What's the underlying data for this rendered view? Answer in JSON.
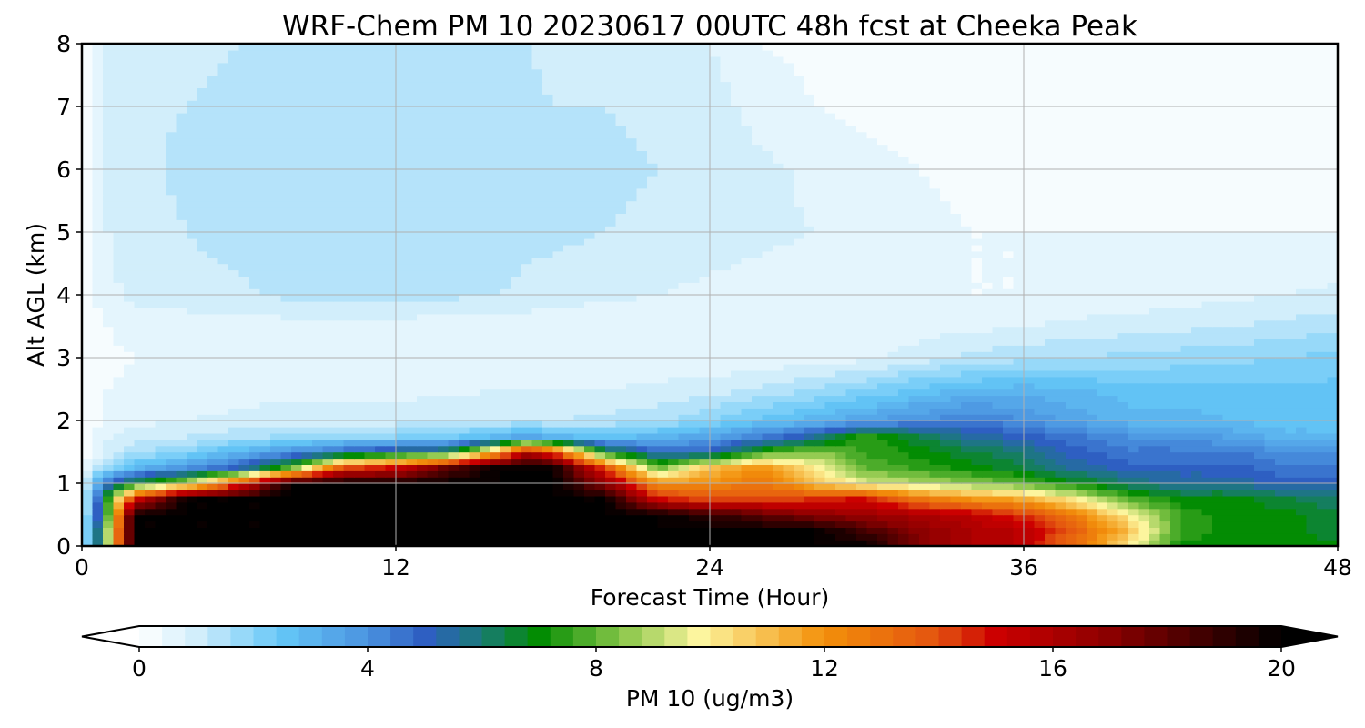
{
  "chart_data": {
    "type": "heatmap",
    "title": "WRF-Chem PM 10  20230617 00UTC 48h fcst at Cheeka Peak",
    "xlabel": "Forecast Time (Hour)",
    "ylabel": "Alt AGL (km)",
    "xlim": [
      0,
      48
    ],
    "ylim": [
      0,
      8
    ],
    "x_ticks": [
      0,
      12,
      24,
      36,
      48
    ],
    "y_ticks": [
      0,
      1,
      2,
      3,
      4,
      5,
      6,
      7,
      8
    ],
    "grid": true,
    "colorbar": {
      "label": "PM 10  (ug/m3)",
      "orientation": "horizontal",
      "placement": "bottom",
      "range": [
        0,
        20
      ],
      "ticks": [
        0,
        4,
        8,
        12,
        16,
        20
      ],
      "extend": "both",
      "stops": [
        {
          "v": 0,
          "c": "#ffffff"
        },
        {
          "v": 1,
          "c": "#d2eefb"
        },
        {
          "v": 2.5,
          "c": "#64c6f7"
        },
        {
          "v": 4,
          "c": "#4b93e0"
        },
        {
          "v": 5,
          "c": "#2e5fc2"
        },
        {
          "v": 6,
          "c": "#1a7b76"
        },
        {
          "v": 7,
          "c": "#038c03"
        },
        {
          "v": 8.5,
          "c": "#8cc84c"
        },
        {
          "v": 9.8,
          "c": "#fcf59e"
        },
        {
          "v": 12,
          "c": "#f3900a"
        },
        {
          "v": 14,
          "c": "#e35310"
        },
        {
          "v": 15,
          "c": "#cc0000"
        },
        {
          "v": 17,
          "c": "#8b0000"
        },
        {
          "v": 20,
          "c": "#000000"
        }
      ]
    },
    "grid_values": {
      "x": [
        0,
        1,
        2,
        4,
        6,
        8,
        10,
        12,
        14,
        16,
        17,
        18,
        20,
        22,
        24,
        26,
        28,
        30,
        32,
        34,
        36,
        38,
        40,
        42,
        44,
        46,
        48
      ],
      "y": [
        0,
        0.25,
        0.5,
        0.75,
        1,
        1.25,
        1.5,
        1.75,
        2,
        2.5,
        3,
        3.5,
        4,
        5,
        6,
        7,
        8
      ],
      "z": [
        [
          0.5,
          9,
          20,
          20,
          20,
          20,
          20,
          20,
          20,
          20,
          20,
          20,
          20,
          20,
          20,
          20,
          20,
          20,
          17,
          16,
          15.5,
          13,
          10,
          7,
          7,
          7,
          7
        ],
        [
          0.5,
          9,
          20,
          20,
          20,
          20,
          20,
          20,
          20,
          20,
          20,
          20,
          20,
          20,
          20,
          20,
          20,
          18.5,
          17,
          16,
          15.5,
          13.5,
          11,
          7.5,
          7,
          7,
          6.5
        ],
        [
          0.5,
          8,
          20,
          20,
          20,
          20,
          20,
          20,
          20,
          20,
          20,
          20,
          20,
          20,
          19,
          18,
          17,
          16.5,
          16,
          15.5,
          14.5,
          12.5,
          10,
          7.5,
          7,
          7,
          6.5
        ],
        [
          0.5,
          7.5,
          15,
          20,
          20,
          20,
          20,
          20,
          20,
          20,
          20,
          20,
          20,
          15,
          14,
          14,
          14.5,
          15,
          13,
          12,
          11.5,
          10,
          8,
          7,
          7,
          6.5,
          6
        ],
        [
          0.5,
          5,
          7,
          9,
          14,
          20,
          20,
          20,
          20,
          20,
          20,
          20,
          17,
          12,
          12,
          13,
          11,
          9.5,
          9,
          8.5,
          8,
          7,
          6,
          5.5,
          5.5,
          5,
          5
        ],
        [
          0.2,
          2,
          3,
          4,
          5,
          8,
          14,
          15,
          18,
          20,
          20,
          20,
          14,
          8,
          11,
          12,
          10,
          8,
          7.5,
          7,
          6.5,
          5.5,
          5,
          5,
          5,
          4.5,
          4.5
        ],
        [
          0.2,
          1,
          1.5,
          2,
          3,
          4,
          5,
          6,
          6.5,
          12,
          16,
          14,
          7,
          5,
          5,
          7.5,
          8.5,
          7.5,
          7,
          6.5,
          6,
          5,
          4.5,
          4.5,
          4.5,
          4,
          4
        ],
        [
          0.1,
          0.8,
          1,
          1.2,
          1.5,
          1.7,
          2,
          2,
          2.3,
          3,
          3.5,
          3,
          2.5,
          3,
          3.5,
          4.5,
          5.5,
          7.5,
          6.5,
          5.5,
          5,
          4.5,
          4,
          4,
          3.5,
          3,
          3
        ],
        [
          0.1,
          0.5,
          0.7,
          0.8,
          0.9,
          1,
          1,
          1,
          1.1,
          1.2,
          1.2,
          1.2,
          1.3,
          1.5,
          2,
          2.5,
          3,
          3.5,
          4,
          4.5,
          4,
          3.5,
          3,
          3,
          2.8,
          2.5,
          2.5
        ],
        [
          0.1,
          0.4,
          0.5,
          0.6,
          0.6,
          0.7,
          0.7,
          0.7,
          0.7,
          0.8,
          0.8,
          0.8,
          0.8,
          0.9,
          1,
          1.3,
          1.6,
          2,
          2.5,
          2.8,
          3,
          2.8,
          2.6,
          2.5,
          2.5,
          2.5,
          2.5
        ],
        [
          0.1,
          0.3,
          0.4,
          0.5,
          0.5,
          0.6,
          0.6,
          0.6,
          0.6,
          0.6,
          0.6,
          0.5,
          0.5,
          0.5,
          0.5,
          0.5,
          0.6,
          0.7,
          1,
          1.3,
          1.5,
          1.6,
          1.7,
          1.8,
          1.9,
          2,
          2.2
        ],
        [
          0.1,
          0.4,
          0.6,
          0.6,
          0.6,
          0.6,
          0.6,
          0.6,
          0.5,
          0.5,
          0.5,
          0.5,
          0.4,
          0.4,
          0.4,
          0.4,
          0.4,
          0.5,
          0.6,
          0.7,
          0.8,
          0.9,
          1,
          1.1,
          1.2,
          1.3,
          1.5
        ],
        [
          0.1,
          0.7,
          0.9,
          1,
          1.1,
          1.3,
          1.4,
          1.4,
          1.3,
          1.2,
          1.1,
          1,
          0.9,
          0.8,
          0.7,
          0.6,
          0.5,
          0.4,
          0.4,
          0.4,
          0.4,
          0.5,
          0.5,
          0.6,
          0.7,
          0.8,
          0.9
        ],
        [
          0.1,
          0.8,
          1,
          1.2,
          1.4,
          1.5,
          1.5,
          1.5,
          1.5,
          1.4,
          1.3,
          1.3,
          1.2,
          1.1,
          1,
          0.9,
          0.8,
          0.6,
          0.5,
          0.4,
          0.4,
          0.4,
          0.4,
          0.4,
          0.4,
          0.4,
          0.4
        ],
        [
          0.1,
          0.9,
          1.1,
          1.3,
          1.5,
          1.5,
          1.6,
          1.6,
          1.6,
          1.5,
          1.5,
          1.4,
          1.3,
          1.2,
          1.1,
          0.9,
          0.7,
          0.5,
          0.4,
          0.3,
          0.3,
          0.3,
          0.3,
          0.3,
          0.3,
          0.3,
          0.3
        ],
        [
          0.1,
          0.9,
          1.1,
          1.2,
          1.3,
          1.4,
          1.4,
          1.5,
          1.4,
          1.4,
          1.3,
          1.2,
          1.2,
          1.1,
          1,
          0.6,
          0.4,
          0.3,
          0.3,
          0.3,
          0.3,
          0.3,
          0.3,
          0.2,
          0.2,
          0.2,
          0.2
        ],
        [
          0.1,
          0.9,
          1,
          1.1,
          1.2,
          1.2,
          1.2,
          1.3,
          1.3,
          1.2,
          1.2,
          1.1,
          1.1,
          1,
          0.8,
          0.4,
          0.3,
          0.3,
          0.3,
          0.3,
          0.2,
          0.2,
          0.2,
          0.2,
          0.2,
          0.2,
          0.2
        ]
      ]
    }
  }
}
